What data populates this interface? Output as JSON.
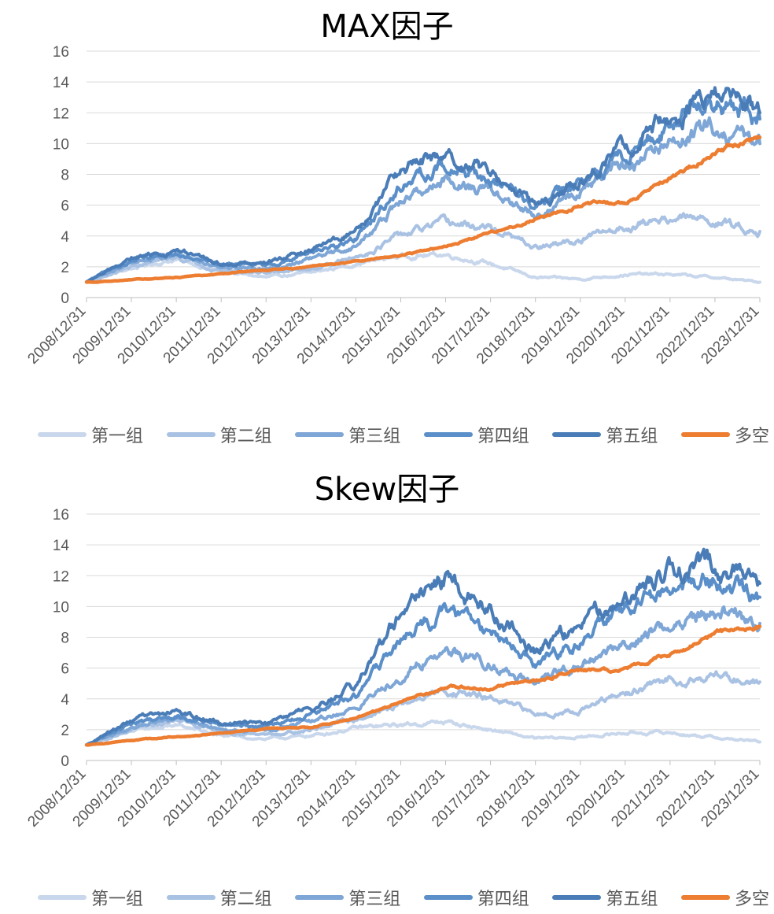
{
  "chart_data": [
    {
      "type": "line",
      "title": "MAX因子",
      "x": [
        "2008/12/31",
        "2009/12/31",
        "2010/12/31",
        "2011/12/31",
        "2012/12/31",
        "2013/12/31",
        "2014/12/31",
        "2015/12/31",
        "2016/12/31",
        "2017/12/31",
        "2018/12/31",
        "2019/12/31",
        "2020/12/31",
        "2021/12/31",
        "2022/12/31",
        "2023/12/31"
      ],
      "y_ticks": [
        "0",
        "2",
        "4",
        "6",
        "8",
        "10",
        "12",
        "14",
        "16"
      ],
      "ylim": [
        0,
        16
      ],
      "grid": true,
      "legend_position": "bottom",
      "series": [
        {
          "name": "第一组",
          "color": "#C9D7EC",
          "values": [
            1.0,
            1.9,
            2.5,
            1.7,
            1.3,
            1.6,
            2.2,
            2.7,
            2.8,
            2.2,
            1.3,
            1.2,
            1.5,
            1.5,
            1.3,
            1.0
          ]
        },
        {
          "name": "第二组",
          "color": "#A9C2E3",
          "values": [
            1.0,
            2.0,
            2.6,
            1.8,
            1.6,
            1.9,
            2.6,
            4.0,
            4.8,
            4.5,
            3.2,
            3.7,
            4.6,
            5.2,
            5.0,
            4.3
          ]
        },
        {
          "name": "第三组",
          "color": "#7EA6D6",
          "values": [
            1.0,
            2.3,
            2.8,
            2.0,
            1.9,
            2.5,
            3.3,
            6.2,
            7.7,
            6.8,
            5.3,
            6.8,
            8.6,
            10.0,
            11.0,
            10.0
          ]
        },
        {
          "name": "第四组",
          "color": "#5B8FC9",
          "values": [
            1.0,
            2.4,
            3.0,
            2.2,
            2.1,
            2.8,
            3.8,
            7.3,
            8.7,
            7.6,
            5.9,
            7.3,
            9.3,
            11.4,
            12.6,
            11.6
          ]
        },
        {
          "name": "第五组",
          "color": "#4A7DB7",
          "values": [
            1.0,
            2.5,
            3.0,
            2.2,
            2.2,
            3.1,
            4.3,
            8.3,
            9.3,
            7.9,
            6.0,
            7.6,
            9.6,
            11.8,
            13.0,
            12.0
          ]
        },
        {
          "name": "多空",
          "color": "#ED7D31",
          "values": [
            1.0,
            1.15,
            1.3,
            1.55,
            1.8,
            2.0,
            2.35,
            2.75,
            3.3,
            4.2,
            5.1,
            6.0,
            6.2,
            7.8,
            9.3,
            10.4
          ]
        }
      ]
    },
    {
      "type": "line",
      "title": "Skew因子",
      "x": [
        "2008/12/31",
        "2009/12/31",
        "2010/12/31",
        "2011/12/31",
        "2012/12/31",
        "2013/12/31",
        "2014/12/31",
        "2015/12/31",
        "2016/12/31",
        "2017/12/31",
        "2018/12/31",
        "2019/12/31",
        "2020/12/31",
        "2021/12/31",
        "2022/12/31",
        "2023/12/31"
      ],
      "y_ticks": [
        "0",
        "2",
        "4",
        "6",
        "8",
        "10",
        "12",
        "14",
        "16"
      ],
      "ylim": [
        0,
        16
      ],
      "grid": true,
      "legend_position": "bottom",
      "series": [
        {
          "name": "第一组",
          "color": "#C9D7EC",
          "values": [
            1.0,
            1.9,
            2.3,
            1.6,
            1.4,
            1.6,
            2.1,
            2.3,
            2.5,
            2.0,
            1.4,
            1.5,
            1.8,
            1.8,
            1.5,
            1.2
          ]
        },
        {
          "name": "第二组",
          "color": "#A9C2E3",
          "values": [
            1.0,
            2.0,
            2.6,
            1.9,
            1.7,
            2.0,
            2.7,
            3.6,
            4.6,
            4.0,
            3.0,
            3.3,
            4.3,
            5.2,
            5.6,
            5.1
          ]
        },
        {
          "name": "第三组",
          "color": "#7EA6D6",
          "values": [
            1.0,
            2.2,
            2.8,
            2.1,
            2.0,
            2.5,
            3.4,
            5.6,
            7.2,
            6.4,
            4.8,
            6.2,
            7.6,
            8.8,
            9.6,
            8.9
          ]
        },
        {
          "name": "第四组",
          "color": "#5B8FC9",
          "values": [
            1.0,
            2.4,
            3.0,
            2.3,
            2.2,
            2.9,
            4.2,
            7.8,
            9.6,
            8.6,
            6.3,
            7.8,
            9.7,
            11.0,
            11.6,
            10.6
          ]
        },
        {
          "name": "第五组",
          "color": "#4A7DB7",
          "values": [
            1.0,
            2.6,
            3.2,
            2.4,
            2.4,
            3.3,
            4.8,
            9.5,
            11.8,
            9.8,
            7.2,
            8.6,
            10.6,
            12.5,
            12.6,
            11.5
          ]
        },
        {
          "name": "多空",
          "color": "#ED7D31",
          "values": [
            1.0,
            1.3,
            1.55,
            1.75,
            2.05,
            2.15,
            2.75,
            3.8,
            4.8,
            4.7,
            5.2,
            5.8,
            5.9,
            6.9,
            8.2,
            8.7
          ]
        }
      ]
    }
  ]
}
